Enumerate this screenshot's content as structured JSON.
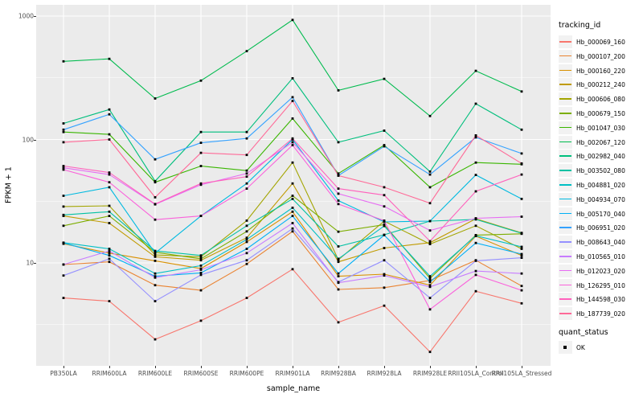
{
  "chart_data": {
    "type": "line",
    "title": "",
    "xlabel": "sample_name",
    "ylabel": "FPKM + 1",
    "y_scale": "log10",
    "ylim": [
      1.4,
      1150
    ],
    "y_major_ticks": [
      1000,
      100,
      10
    ],
    "y_tick_labels": [
      "1000",
      "100",
      "10"
    ],
    "y_minor_gridlines": [
      316.2,
      31.62,
      3.162
    ],
    "grid": true,
    "panel_bg": "#EBEBEB",
    "grid_color": "#FFFFFF",
    "point_color": "#000000",
    "legend_position": "right",
    "legend_tracking_title": "tracking_id",
    "legend_quant_title": "quant_status",
    "quant_status_value": "OK",
    "categories": [
      "PB350LA",
      "RRIM600LA",
      "RRIM600LE",
      "RRIM600SE",
      "RRIM600PE",
      "RRIM901LA",
      "RRIM928BA",
      "RRIM928LA",
      "RRIM928LE",
      "RRII105LA_Control",
      "RRII105LA_Stressed"
    ],
    "series": [
      {
        "name": "Hb_000069_160",
        "color": "#F8766D",
        "values": [
          5.2,
          4.9,
          2.4,
          3.4,
          5.2,
          8.9,
          3.3,
          4.5,
          1.9,
          5.9,
          4.7
        ]
      },
      {
        "name": "Hb_000107_200",
        "color": "#EA8331",
        "values": [
          9.7,
          10.2,
          6.6,
          6.0,
          9.8,
          18,
          6.1,
          6.3,
          7.2,
          10.5,
          6.5
        ]
      },
      {
        "name": "Hb_000160_220",
        "color": "#D89000",
        "values": [
          14.3,
          12.0,
          10.4,
          9.0,
          14.8,
          26,
          7.8,
          8.1,
          6.6,
          16.5,
          11.5
        ]
      },
      {
        "name": "Hb_000212_240",
        "color": "#C09B00",
        "values": [
          24,
          21,
          11.2,
          10.5,
          16,
          44,
          10.2,
          13.2,
          14.6,
          22.8,
          17.5
        ]
      },
      {
        "name": "Hb_000606_080",
        "color": "#A3A500",
        "values": [
          28.6,
          29,
          11.6,
          11.2,
          22,
          65,
          10.6,
          21.8,
          14.2,
          20,
          13
        ]
      },
      {
        "name": "Hb_000679_150",
        "color": "#7CAE00",
        "values": [
          20,
          24,
          12.2,
          10.8,
          18,
          35,
          17.9,
          20.4,
          7.5,
          16.8,
          17.2
        ]
      },
      {
        "name": "Hb_001047_030",
        "color": "#39B600",
        "values": [
          115,
          110,
          45,
          61,
          56,
          148,
          53,
          90,
          41,
          65,
          63
        ]
      },
      {
        "name": "Hb_002067_120",
        "color": "#00BB4E",
        "values": [
          430,
          450,
          215,
          300,
          520,
          930,
          250,
          310,
          155,
          360,
          245
        ]
      },
      {
        "name": "Hb_002982_040",
        "color": "#00BF7D",
        "values": [
          135,
          175,
          46,
          115,
          115,
          313,
          95,
          118,
          55,
          195,
          120
        ]
      },
      {
        "name": "Hb_003502_080",
        "color": "#00C1A3",
        "values": [
          24.5,
          26,
          12.5,
          11.5,
          20,
          33,
          13.6,
          16.9,
          21.8,
          22.5,
          17.4
        ]
      },
      {
        "name": "Hb_004881_020",
        "color": "#00BFC4",
        "values": [
          14.6,
          13,
          8.2,
          9.5,
          15.5,
          28,
          10.8,
          19.9,
          7.8,
          16.6,
          13.5
        ]
      },
      {
        "name": "Hb_004934_070",
        "color": "#00BAE0",
        "values": [
          35,
          41,
          12,
          24,
          44,
          100,
          32,
          21.5,
          21.8,
          51.6,
          33
        ]
      },
      {
        "name": "Hb_005170_040",
        "color": "#00B0F6",
        "values": [
          14.5,
          11.5,
          7.8,
          8.3,
          13,
          24,
          8.2,
          16.8,
          7.0,
          14.5,
          11.8
        ]
      },
      {
        "name": "Hb_006951_020",
        "color": "#35A2FF",
        "values": [
          120,
          160,
          69,
          94,
          102,
          220,
          51,
          88,
          52,
          104,
          77
        ]
      },
      {
        "name": "Hb_008643_040",
        "color": "#9590FF",
        "values": [
          7.9,
          10.8,
          4.9,
          8.0,
          10.5,
          19,
          7.0,
          10.5,
          5.2,
          10.4,
          11.0
        ]
      },
      {
        "name": "Hb_010565_010",
        "color": "#C77CFF",
        "values": [
          9.7,
          12.5,
          7.6,
          8.8,
          12,
          21,
          6.9,
          7.9,
          6.4,
          8.6,
          8.2
        ]
      },
      {
        "name": "Hb_012023_020",
        "color": "#E76BF3",
        "values": [
          59,
          52,
          29.8,
          43,
          53,
          95,
          36.4,
          28.7,
          18.3,
          23,
          23.7
        ]
      },
      {
        "name": "Hb_126295_010",
        "color": "#FA62DB",
        "values": [
          57,
          45,
          22.4,
          24,
          40,
          90,
          30,
          22,
          4.2,
          8,
          6
        ]
      },
      {
        "name": "Hb_144598_030",
        "color": "#FF62BC",
        "values": [
          61,
          54,
          30,
          44,
          50,
          102,
          40,
          35.4,
          15,
          38,
          52
        ]
      },
      {
        "name": "Hb_187739_020",
        "color": "#FF6A98",
        "values": [
          95,
          100,
          34,
          78,
          75,
          205,
          51,
          41,
          30.5,
          108,
          64
        ]
      }
    ]
  }
}
